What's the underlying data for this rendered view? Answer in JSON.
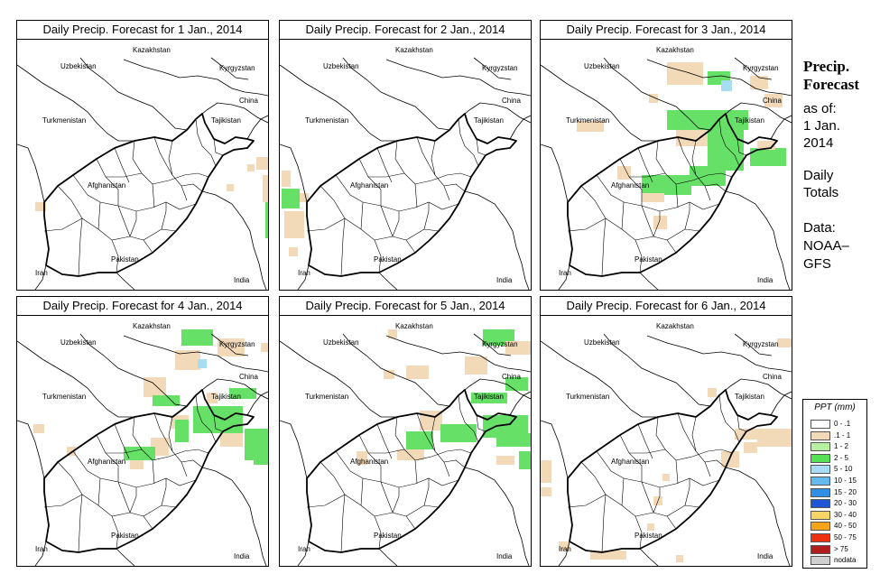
{
  "panels": [
    {
      "title": "Daily Precip. Forecast for  1 Jan., 2014",
      "patches": [
        [
          265,
          130,
          14,
          14,
          "t"
        ],
        [
          255,
          138,
          8,
          8,
          "t"
        ],
        [
          272,
          150,
          8,
          30,
          "t"
        ],
        [
          275,
          180,
          5,
          40,
          "g"
        ],
        [
          287,
          205,
          6,
          10,
          "c"
        ],
        [
          20,
          180,
          12,
          10,
          "t"
        ],
        [
          232,
          160,
          8,
          8,
          "t"
        ]
      ]
    },
    {
      "title": "Daily Precip. Forecast for  2 Jan., 2014",
      "patches": [
        [
          2,
          145,
          10,
          18,
          "t"
        ],
        [
          2,
          165,
          20,
          22,
          "g"
        ],
        [
          22,
          170,
          10,
          10,
          "t"
        ],
        [
          5,
          190,
          22,
          30,
          "t"
        ],
        [
          10,
          230,
          10,
          10,
          "t"
        ],
        [
          0,
          290,
          8,
          8,
          "c"
        ],
        [
          410,
          155,
          6,
          6,
          "t"
        ]
      ]
    },
    {
      "title": "Daily Precip. Forecast for  3 Jan., 2014",
      "patches": [
        [
          140,
          25,
          40,
          25,
          "t"
        ],
        [
          185,
          35,
          25,
          15,
          "g"
        ],
        [
          200,
          45,
          12,
          12,
          "c"
        ],
        [
          232,
          40,
          20,
          15,
          "t"
        ],
        [
          140,
          78,
          90,
          22,
          "g"
        ],
        [
          150,
          100,
          40,
          18,
          "t"
        ],
        [
          185,
          100,
          40,
          45,
          "g"
        ],
        [
          232,
          120,
          40,
          20,
          "g"
        ],
        [
          240,
          112,
          20,
          10,
          "t"
        ],
        [
          165,
          140,
          40,
          22,
          "g"
        ],
        [
          112,
          150,
          55,
          22,
          "g"
        ],
        [
          112,
          170,
          25,
          10,
          "t"
        ],
        [
          125,
          195,
          15,
          15,
          "t"
        ],
        [
          85,
          140,
          15,
          15,
          "t"
        ],
        [
          40,
          90,
          30,
          12,
          "t"
        ],
        [
          120,
          60,
          10,
          10,
          "t"
        ],
        [
          248,
          60,
          20,
          15,
          "t"
        ]
      ]
    },
    {
      "title": "Daily Precip. Forecast for  4 Jan., 2014",
      "patches": [
        [
          182,
          15,
          35,
          18,
          "g"
        ],
        [
          222,
          25,
          30,
          20,
          "t"
        ],
        [
          175,
          38,
          28,
          22,
          "t"
        ],
        [
          200,
          48,
          10,
          10,
          "c"
        ],
        [
          140,
          68,
          25,
          22,
          "t"
        ],
        [
          150,
          88,
          30,
          12,
          "g"
        ],
        [
          210,
          85,
          12,
          12,
          "t"
        ],
        [
          235,
          80,
          30,
          12,
          "g"
        ],
        [
          195,
          100,
          55,
          30,
          "g"
        ],
        [
          252,
          125,
          30,
          35,
          "g"
        ],
        [
          225,
          130,
          25,
          15,
          "t"
        ],
        [
          170,
          110,
          20,
          15,
          "t"
        ],
        [
          175,
          115,
          15,
          25,
          "g"
        ],
        [
          148,
          135,
          20,
          20,
          "t"
        ],
        [
          118,
          145,
          35,
          15,
          "g"
        ],
        [
          125,
          160,
          15,
          10,
          "t"
        ],
        [
          262,
          150,
          18,
          15,
          "g"
        ],
        [
          18,
          120,
          12,
          10,
          "t"
        ],
        [
          55,
          145,
          10,
          10,
          "t"
        ],
        [
          270,
          30,
          10,
          10,
          "t"
        ]
      ]
    },
    {
      "title": "Daily Precip. Forecast for  5 Jan., 2014",
      "patches": [
        [
          225,
          15,
          35,
          18,
          "g"
        ],
        [
          250,
          28,
          30,
          15,
          "t"
        ],
        [
          205,
          45,
          25,
          20,
          "t"
        ],
        [
          140,
          55,
          25,
          15,
          "t"
        ],
        [
          250,
          68,
          25,
          15,
          "g"
        ],
        [
          212,
          85,
          40,
          12,
          "g"
        ],
        [
          155,
          105,
          25,
          22,
          "t"
        ],
        [
          178,
          120,
          40,
          20,
          "g"
        ],
        [
          140,
          128,
          30,
          20,
          "g"
        ],
        [
          225,
          110,
          50,
          25,
          "g"
        ],
        [
          240,
          130,
          40,
          15,
          "g"
        ],
        [
          130,
          148,
          30,
          12,
          "t"
        ],
        [
          85,
          150,
          12,
          15,
          "t"
        ],
        [
          265,
          150,
          15,
          20,
          "g"
        ],
        [
          240,
          155,
          20,
          10,
          "t"
        ],
        [
          115,
          60,
          12,
          10,
          "t"
        ],
        [
          120,
          15,
          10,
          10,
          "t"
        ]
      ]
    },
    {
      "title": "Daily Precip. Forecast for  6 Jan., 2014",
      "patches": [
        [
          262,
          25,
          18,
          10,
          "t"
        ],
        [
          185,
          80,
          10,
          10,
          "t"
        ],
        [
          215,
          125,
          25,
          12,
          "t"
        ],
        [
          240,
          125,
          40,
          20,
          "t"
        ],
        [
          225,
          140,
          15,
          12,
          "t"
        ],
        [
          200,
          150,
          20,
          18,
          "t"
        ],
        [
          0,
          160,
          12,
          25,
          "t"
        ],
        [
          0,
          190,
          12,
          10,
          "t"
        ],
        [
          0,
          280,
          10,
          10,
          "t"
        ],
        [
          5,
          285,
          20,
          10,
          "t"
        ],
        [
          20,
          250,
          12,
          10,
          "t"
        ],
        [
          55,
          260,
          40,
          10,
          "t"
        ],
        [
          20,
          303,
          12,
          10,
          "t"
        ],
        [
          150,
          265,
          8,
          8,
          "t"
        ],
        [
          135,
          175,
          8,
          8,
          "t"
        ],
        [
          125,
          200,
          10,
          10,
          "t"
        ],
        [
          118,
          230,
          8,
          8,
          "t"
        ]
      ]
    }
  ],
  "map_labels": {
    "uzbekistan": "Uzbekistan",
    "kazakhstan": "Kazakhstan",
    "kyrgyzstan": "Kyrgyzstan",
    "china": "China",
    "turkmenistan": "Turkmenistan",
    "tajikistan": "Tajikistan",
    "afghanistan": "Afghanistan",
    "pakistan": "Pakistan",
    "iran": "Iran",
    "india": "India"
  },
  "side": {
    "heading1": "Precip.",
    "heading2": "Forecast",
    "as_of": "as of:",
    "date1": "1 Jan.",
    "date2": "2014",
    "daily": "Daily",
    "totals": "Totals",
    "data": "Data:",
    "source1": "NOAA–",
    "source2": "GFS"
  },
  "legend": {
    "title": "PPT (mm)",
    "items": [
      {
        "label": "0 - .1",
        "color": "#ffffff"
      },
      {
        "label": ".1 - 1",
        "color": "#f2d9b8"
      },
      {
        "label": "1 - 2",
        "color": "#b6f0a0"
      },
      {
        "label": "2 - 5",
        "color": "#55e055"
      },
      {
        "label": "5 - 10",
        "color": "#a8dcf2"
      },
      {
        "label": "10 - 15",
        "color": "#64b9ee"
      },
      {
        "label": "15 - 20",
        "color": "#2f8fe6"
      },
      {
        "label": "20 - 30",
        "color": "#1f56d6"
      },
      {
        "label": "30 - 40",
        "color": "#f6d566"
      },
      {
        "label": "40 - 50",
        "color": "#f6a418"
      },
      {
        "label": "50 - 75",
        "color": "#ee3210"
      },
      {
        "label": "> 75",
        "color": "#b01d1d"
      },
      {
        "label": "nodata",
        "color": "#cfcfcf"
      }
    ]
  },
  "colors": {
    "t": "#f2d9b8",
    "g": "#66e066",
    "c": "#a8dcf2"
  }
}
